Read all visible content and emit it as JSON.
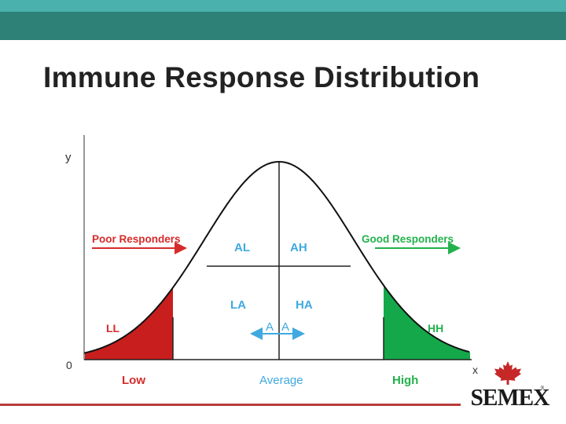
{
  "slide": {
    "title": "Immune Response Distribution"
  },
  "diagram": {
    "axis_y_label": "y",
    "axis_x_label": "x",
    "origin_label": "0",
    "poor_responders": "Poor Responders",
    "good_responders": "Good Responders",
    "regions": {
      "al": "AL",
      "ah": "AH",
      "la": "LA",
      "ha": "HA",
      "a_left": "A",
      "a_right": "A",
      "ll": "LL",
      "hh": "HH"
    },
    "categories": {
      "low": "Low",
      "average": "Average",
      "high": "High"
    }
  },
  "colors": {
    "poor": "#d62b2b",
    "good": "#22b14c",
    "average": "#3fa9e0",
    "low_fill": "#c81e1e",
    "high_fill": "#15a84a",
    "brand_band": "#2d8176",
    "brand_strip": "#4bb1ac",
    "rule": "#b83a3a"
  },
  "logo": {
    "text": "SEMEX",
    "icon": "maple-leaf-icon"
  }
}
